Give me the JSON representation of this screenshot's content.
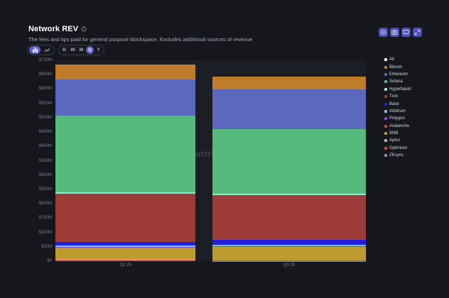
{
  "header": {
    "title": "Network REV",
    "subtitle": "The fees and tips paid for general purpose blockspace. Excludes additional sources of revenue"
  },
  "controls": {
    "chart_types": [
      {
        "name": "stacked-bar",
        "selected": true
      },
      {
        "name": "line",
        "selected": false
      }
    ],
    "ranges": [
      {
        "label": "D",
        "selected": false
      },
      {
        "label": "W",
        "selected": false
      },
      {
        "label": "M",
        "selected": false
      },
      {
        "label": "Q",
        "selected": true
      },
      {
        "label": "Y",
        "selected": false
      }
    ]
  },
  "actions": [
    {
      "name": "alert"
    },
    {
      "name": "screenshot"
    },
    {
      "name": "embed"
    },
    {
      "name": "fullscreen"
    }
  ],
  "watermark": {
    "brand": "Blockworks",
    "badge": "Research"
  },
  "colors": {
    "accent": "#585ed2",
    "page_bg": "#15171c",
    "plot_bg": "#1c1e25",
    "axis_text": "#787e90",
    "legend_all": "#ffffff"
  },
  "chart_data": {
    "type": "bar",
    "stacked": true,
    "title": "Network REV",
    "unit": "USD (millions)",
    "categories": [
      "Q2 25",
      "Q3 25"
    ],
    "ylim": [
      0,
      700
    ],
    "ytick_step": 50,
    "ytick_labels": [
      "$0",
      "$50M",
      "$100M",
      "$150M",
      "$200M",
      "$250M",
      "$300M",
      "$350M",
      "$400M",
      "$450M",
      "$500M",
      "$550M",
      "$600M",
      "$650M",
      "$700M"
    ],
    "grid": false,
    "legend_position": "right",
    "legend_all_label": "All",
    "series": [
      {
        "name": "Bitcoin",
        "color": "#bf7d2c",
        "values": [
          51,
          45
        ]
      },
      {
        "name": "Ethereum",
        "color": "#5c68bd",
        "values": [
          127,
          138
        ]
      },
      {
        "name": "Solana",
        "color": "#56ba7d",
        "values": [
          266,
          226
        ]
      },
      {
        "name": "Hyperliquid",
        "color": "#9be8cf",
        "values": [
          4,
          4
        ]
      },
      {
        "name": "Tron",
        "color": "#9c3b38",
        "values": [
          170,
          158
        ]
      },
      {
        "name": "Base",
        "color": "#2220dd",
        "values": [
          12,
          15
        ]
      },
      {
        "name": "Arbitrum",
        "color": "#6fc2de",
        "values": [
          4,
          5
        ]
      },
      {
        "name": "Polygon",
        "color": "#8247e5",
        "values": [
          2,
          2
        ]
      },
      {
        "name": "Avalanche",
        "color": "#c04a4a",
        "values": [
          2,
          2
        ]
      },
      {
        "name": "BNB",
        "color": "#bd9b2e",
        "values": [
          40,
          46
        ]
      },
      {
        "name": "Aptos",
        "color": "#b7bdc6",
        "values": [
          2,
          1
        ]
      },
      {
        "name": "Optimism",
        "color": "#d24a3e",
        "values": [
          2,
          1
        ]
      },
      {
        "name": "ZKsync",
        "color": "#8b90a0",
        "values": [
          2,
          1
        ]
      }
    ]
  }
}
